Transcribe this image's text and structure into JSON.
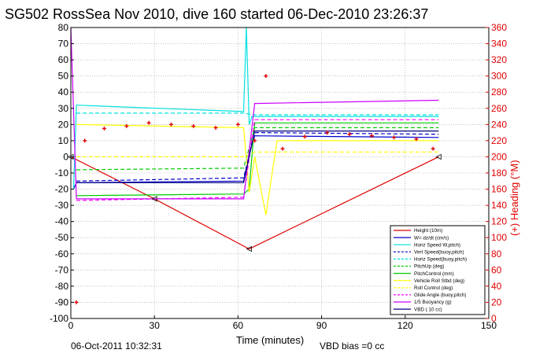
{
  "figure": {
    "title": "SG502 RossSea Nov 2010, dive 160 started 06-Dec-2010 23:26:37",
    "timestamp": "06-Oct-2011 10:32:31",
    "vbd_bias": "VBD bias =0 cc"
  },
  "chart_data": {
    "type": "line",
    "title": "SG502 RossSea Nov 2010, dive 160 started 06-Dec-2010 23:26:37",
    "xlabel": "Time (minutes)",
    "ylabel": "",
    "y2label": "(+) Heading (°M)",
    "xlim": [
      0,
      150
    ],
    "ylim": [
      -100,
      80
    ],
    "y2lim": [
      0,
      360
    ],
    "x_ticks": [
      0,
      30,
      60,
      90,
      120,
      150
    ],
    "y_ticks": [
      80,
      70,
      60,
      50,
      40,
      30,
      20,
      10,
      0,
      -10,
      -20,
      -30,
      -40,
      -50,
      -60,
      -70,
      -80,
      -90,
      -100
    ],
    "y2_ticks": [
      360,
      340,
      320,
      300,
      280,
      260,
      240,
      220,
      200,
      180,
      160,
      140,
      120,
      100,
      80,
      60,
      40,
      20,
      0
    ],
    "grid": true,
    "legend_position": "bottom-right",
    "series": [
      {
        "name": "Height (10m)",
        "color": "#e00000",
        "style": "solid",
        "marker": "triangle",
        "x": [
          0,
          30,
          64,
          132
        ],
        "y": [
          0,
          -26,
          -57,
          0
        ]
      },
      {
        "name": "W= dz/dt (cm/s)",
        "color": "#0000cc",
        "style": "solid",
        "x": [
          1,
          2,
          62,
          64,
          66,
          132
        ],
        "y": [
          -20,
          -16,
          -15,
          2,
          13,
          12
        ]
      },
      {
        "name": "Horiz Speed W,pitch)",
        "color": "#00e0e0",
        "style": "solid",
        "x": [
          1,
          2,
          62,
          63,
          64,
          65,
          132
        ],
        "y": [
          -20,
          32,
          28,
          80,
          20,
          25,
          25
        ]
      },
      {
        "name": "Vert Speed(buoy,pitch)",
        "color": "#0000cc",
        "style": "dash",
        "x": [
          2,
          62,
          66,
          132
        ],
        "y": [
          -15,
          -13,
          15,
          14
        ]
      },
      {
        "name": "Horiz Speed(buoy,pitch)",
        "color": "#00e0e0",
        "style": "dash",
        "x": [
          2,
          62,
          66,
          132
        ],
        "y": [
          27,
          27,
          26,
          26
        ]
      },
      {
        "name": "PitchUp (deg)",
        "color": "#00cc00",
        "style": "dash",
        "x": [
          2,
          62,
          66,
          132
        ],
        "y": [
          -8,
          -7,
          18,
          18
        ]
      },
      {
        "name": "PitchControl (mm)",
        "color": "#00cc00",
        "style": "solid",
        "x": [
          2,
          62,
          64,
          66,
          132
        ],
        "y": [
          -24,
          -23,
          -20,
          21,
          21
        ]
      },
      {
        "name": "Vehicle Roll Stbd (deg)",
        "color": "#ffff00",
        "style": "solid",
        "x": [
          2,
          62,
          64,
          66,
          70,
          74,
          132
        ],
        "y": [
          20,
          18,
          -22,
          0,
          -36,
          10,
          10
        ]
      },
      {
        "name": "Roll Control (deg)",
        "color": "#ffff00",
        "style": "dash",
        "x": [
          2,
          62,
          66,
          132
        ],
        "y": [
          0,
          0,
          3,
          3
        ]
      },
      {
        "name": "Glide Angle (buoy,pitch)",
        "color": "#ff00ff",
        "style": "dash",
        "x": [
          2,
          62,
          66,
          132
        ],
        "y": [
          -27,
          -25,
          23,
          23
        ]
      },
      {
        "name": "1/5 Buoyancy (g)",
        "color": "#cc00ff",
        "style": "solid",
        "x": [
          0,
          2,
          62,
          66,
          132
        ],
        "y": [
          80,
          -26,
          -26,
          33,
          35
        ]
      },
      {
        "name": "VBD ( 10 cc)",
        "color": "#000080",
        "style": "solid",
        "x": [
          2,
          62,
          66,
          132
        ],
        "y": [
          -16,
          -16,
          16,
          16
        ]
      },
      {
        "name": "Heading",
        "color": "#e00000",
        "style": "marker",
        "axis": "right",
        "x": [
          2,
          5,
          12,
          20,
          28,
          36,
          44,
          52,
          60,
          66,
          70,
          76,
          84,
          92,
          100,
          108,
          116,
          124,
          130
        ],
        "y": [
          20,
          220,
          235,
          238,
          242,
          240,
          238,
          236,
          240,
          220,
          300,
          210,
          225,
          230,
          228,
          226,
          224,
          222,
          210
        ]
      }
    ]
  },
  "legend": [
    {
      "label": "Height (10m)",
      "color": "#e00000",
      "dash": false
    },
    {
      "label": "W= dz/dt (cm/s)",
      "color": "#0000cc",
      "dash": false
    },
    {
      "label": "Horiz Speed W,pitch)",
      "color": "#00e0e0",
      "dash": false
    },
    {
      "label": "Vert Speed(buoy,pitch)",
      "color": "#0000cc",
      "dash": true
    },
    {
      "label": "Horiz Speed(buoy,pitch)",
      "color": "#00e0e0",
      "dash": true
    },
    {
      "label": "PitchUp (deg)",
      "color": "#00cc00",
      "dash": true
    },
    {
      "label": "PitchControl (mm)",
      "color": "#00cc00",
      "dash": false
    },
    {
      "label": "Vehicle Roll Stbd (deg)",
      "color": "#ffff00",
      "dash": false
    },
    {
      "label": "Roll Control (deg)",
      "color": "#ffff00",
      "dash": true
    },
    {
      "label": "Glide Angle (buoy,pitch)",
      "color": "#ff00ff",
      "dash": true
    },
    {
      "label": "1/5 Buoyancy (g)",
      "color": "#cc00ff",
      "dash": false
    },
    {
      "label": "VBD ( 10 cc)",
      "color": "#000080",
      "dash": false
    }
  ]
}
